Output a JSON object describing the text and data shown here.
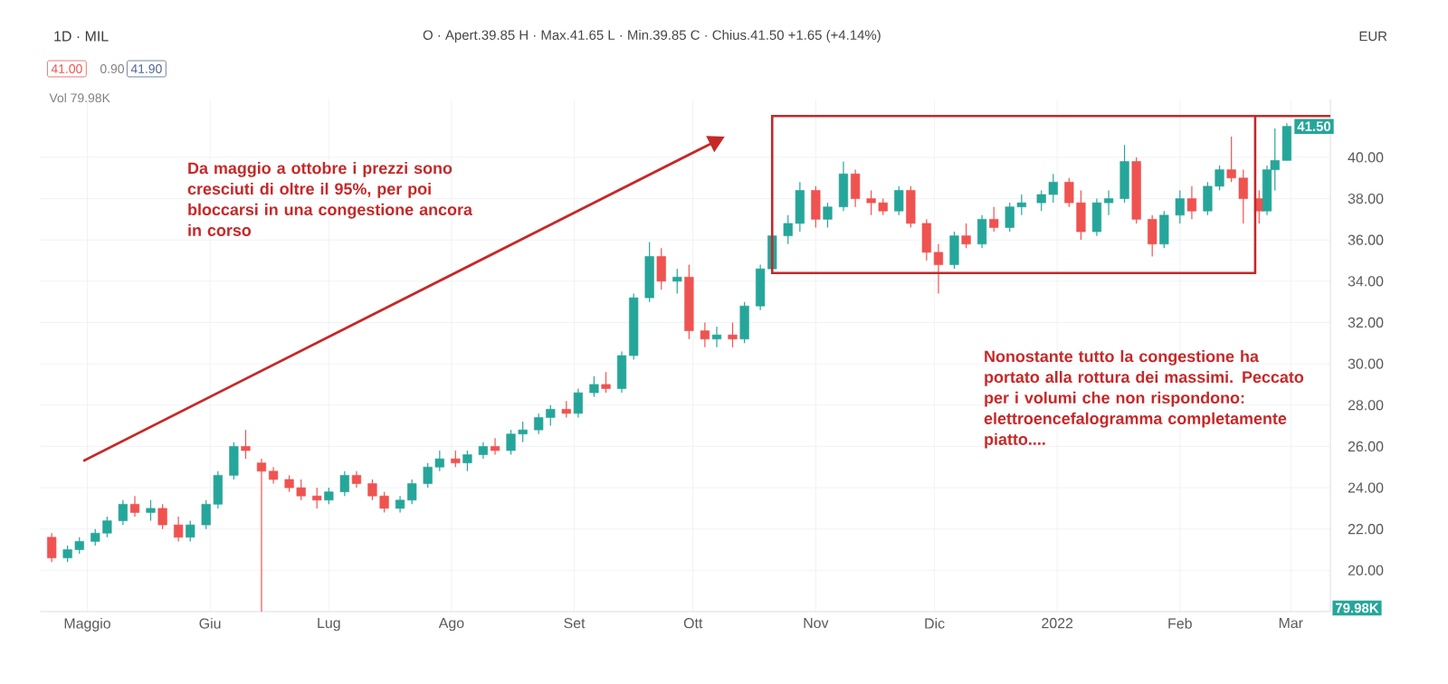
{
  "chart_data": {
    "type": "candlestick",
    "title": "1D · MIL",
    "subtitle": "O · Apert.39.85 H · Max.41.65 L · Min.39.85 C · Chius.41.50 +1.65 (+4.14%)",
    "ylabel": "EUR",
    "annotations": [
      "Da maggio a ottobre i prezzi sono cresciuti di oltre il 95%, per poi bloccarsi in una congestione ancora in corso",
      "Nonostante tutto la congestione ha portato alla rottura dei massimi. Peccato per i volumi che non rispondono: elettroencefalogramma completamente piatto....",
      "41.00",
      "0.90",
      "41.90",
      "Vol 79.98K",
      "79.98K",
      {
        "text": "41.50",
        "x": "2022-02-28",
        "y": 41.5
      }
    ],
    "x": [
      "2021-04-22",
      "2021-04-26",
      "2021-04-29",
      "2021-05-03",
      "2021-05-06",
      "2021-05-10",
      "2021-05-13",
      "2021-05-17",
      "2021-05-20",
      "2021-05-24",
      "2021-05-27",
      "2021-05-31",
      "2021-06-03",
      "2021-06-07",
      "2021-06-10",
      "2021-06-14",
      "2021-06-17",
      "2021-06-21",
      "2021-06-24",
      "2021-06-28",
      "2021-07-01",
      "2021-07-05",
      "2021-07-08",
      "2021-07-12",
      "2021-07-15",
      "2021-07-19",
      "2021-07-22",
      "2021-07-26",
      "2021-07-29",
      "2021-08-02",
      "2021-08-05",
      "2021-08-09",
      "2021-08-12",
      "2021-08-16",
      "2021-08-19",
      "2021-08-23",
      "2021-08-26",
      "2021-08-30",
      "2021-09-02",
      "2021-09-06",
      "2021-09-09",
      "2021-09-13",
      "2021-09-16",
      "2021-09-20",
      "2021-09-23",
      "2021-09-27",
      "2021-09-30",
      "2021-10-04",
      "2021-10-07",
      "2021-10-11",
      "2021-10-14",
      "2021-10-18",
      "2021-10-21",
      "2021-10-25",
      "2021-10-28",
      "2021-11-01",
      "2021-11-04",
      "2021-11-08",
      "2021-11-11",
      "2021-11-15",
      "2021-11-18",
      "2021-11-22",
      "2021-11-25",
      "2021-11-29",
      "2021-12-02",
      "2021-12-06",
      "2021-12-09",
      "2021-12-13",
      "2021-12-16",
      "2021-12-20",
      "2021-12-23",
      "2021-12-28",
      "2021-12-31",
      "2022-01-04",
      "2022-01-07",
      "2022-01-11",
      "2022-01-14",
      "2022-01-18",
      "2022-01-21",
      "2022-01-25",
      "2022-01-28",
      "2022-02-01",
      "2022-02-04",
      "2022-02-08",
      "2022-02-11",
      "2022-02-14",
      "2022-02-17",
      "2022-02-21",
      "2022-02-23",
      "2022-02-25",
      "2022-02-28"
    ],
    "ohlc": [
      [
        21.6,
        21.8,
        20.4,
        20.6
      ],
      [
        20.6,
        21.2,
        20.4,
        21.0
      ],
      [
        21.0,
        21.6,
        20.8,
        21.4
      ],
      [
        21.4,
        22.0,
        21.2,
        21.8
      ],
      [
        21.8,
        22.6,
        21.6,
        22.4
      ],
      [
        22.4,
        23.4,
        22.2,
        23.2
      ],
      [
        23.2,
        23.6,
        22.6,
        22.8
      ],
      [
        22.8,
        23.4,
        22.4,
        23.0
      ],
      [
        23.0,
        23.2,
        22.0,
        22.2
      ],
      [
        22.2,
        22.6,
        21.4,
        21.6
      ],
      [
        21.6,
        22.4,
        21.4,
        22.2
      ],
      [
        22.2,
        23.4,
        22.0,
        23.2
      ],
      [
        23.2,
        24.8,
        23.0,
        24.6
      ],
      [
        24.6,
        26.2,
        24.4,
        26.0
      ],
      [
        26.0,
        26.8,
        25.4,
        25.8
      ],
      [
        25.2,
        25.4,
        18.0,
        24.8
      ],
      [
        24.8,
        25.0,
        24.2,
        24.4
      ],
      [
        24.4,
        24.6,
        23.8,
        24.0
      ],
      [
        24.0,
        24.4,
        23.4,
        23.6
      ],
      [
        23.6,
        24.0,
        23.0,
        23.4
      ],
      [
        23.4,
        24.0,
        23.2,
        23.8
      ],
      [
        23.8,
        24.8,
        23.6,
        24.6
      ],
      [
        24.6,
        24.8,
        24.0,
        24.2
      ],
      [
        24.2,
        24.4,
        23.4,
        23.6
      ],
      [
        23.6,
        23.8,
        22.8,
        23.0
      ],
      [
        23.0,
        23.6,
        22.8,
        23.4
      ],
      [
        23.4,
        24.4,
        23.2,
        24.2
      ],
      [
        24.2,
        25.2,
        24.0,
        25.0
      ],
      [
        25.0,
        25.8,
        24.8,
        25.4
      ],
      [
        25.4,
        25.8,
        25.0,
        25.2
      ],
      [
        25.2,
        25.8,
        24.8,
        25.6
      ],
      [
        25.6,
        26.2,
        25.4,
        26.0
      ],
      [
        26.0,
        26.4,
        25.6,
        25.8
      ],
      [
        25.8,
        26.8,
        25.6,
        26.6
      ],
      [
        26.6,
        27.2,
        26.2,
        26.8
      ],
      [
        26.8,
        27.6,
        26.6,
        27.4
      ],
      [
        27.4,
        28.0,
        27.0,
        27.8
      ],
      [
        27.8,
        28.2,
        27.4,
        27.6
      ],
      [
        27.6,
        28.8,
        27.4,
        28.6
      ],
      [
        28.6,
        29.4,
        28.4,
        29.0
      ],
      [
        29.0,
        29.6,
        28.6,
        28.8
      ],
      [
        28.8,
        30.6,
        28.6,
        30.4
      ],
      [
        30.4,
        33.4,
        30.2,
        33.2
      ],
      [
        33.2,
        35.9,
        33.0,
        35.2
      ],
      [
        35.2,
        35.6,
        33.6,
        34.0
      ],
      [
        34.0,
        34.6,
        33.4,
        34.2
      ],
      [
        34.2,
        34.8,
        31.2,
        31.6
      ],
      [
        31.6,
        32.0,
        30.8,
        31.2
      ],
      [
        31.2,
        31.8,
        30.8,
        31.4
      ],
      [
        31.4,
        32.0,
        30.8,
        31.2
      ],
      [
        31.2,
        33.0,
        31.0,
        32.8
      ],
      [
        32.8,
        34.8,
        32.6,
        34.6
      ],
      [
        34.6,
        36.4,
        34.4,
        36.2
      ],
      [
        36.2,
        37.2,
        35.8,
        36.8
      ],
      [
        36.8,
        38.8,
        36.4,
        38.4
      ],
      [
        38.4,
        38.6,
        36.6,
        37.0
      ],
      [
        37.0,
        37.8,
        36.6,
        37.6
      ],
      [
        37.6,
        39.8,
        37.4,
        39.2
      ],
      [
        39.2,
        39.4,
        37.6,
        38.0
      ],
      [
        38.0,
        38.4,
        37.2,
        37.8
      ],
      [
        37.8,
        38.0,
        37.2,
        37.4
      ],
      [
        37.4,
        38.6,
        37.2,
        38.4
      ],
      [
        38.4,
        38.6,
        36.6,
        36.8
      ],
      [
        36.8,
        37.0,
        35.0,
        35.4
      ],
      [
        35.4,
        35.8,
        33.4,
        34.8
      ],
      [
        34.8,
        36.4,
        34.6,
        36.2
      ],
      [
        36.2,
        36.8,
        35.6,
        35.8
      ],
      [
        35.8,
        37.2,
        35.6,
        37.0
      ],
      [
        37.0,
        37.6,
        36.4,
        36.6
      ],
      [
        36.6,
        37.8,
        36.4,
        37.6
      ],
      [
        37.6,
        38.2,
        37.2,
        37.8
      ],
      [
        37.8,
        38.4,
        37.4,
        38.2
      ],
      [
        38.2,
        39.2,
        37.8,
        38.8
      ],
      [
        38.8,
        39.0,
        37.6,
        37.8
      ],
      [
        37.8,
        38.4,
        36.0,
        36.4
      ],
      [
        36.4,
        38.0,
        36.2,
        37.8
      ],
      [
        37.8,
        38.4,
        37.2,
        38.0
      ],
      [
        38.0,
        40.6,
        37.8,
        39.8
      ],
      [
        39.8,
        40.0,
        36.8,
        37.0
      ],
      [
        37.0,
        37.2,
        35.2,
        35.8
      ],
      [
        35.8,
        37.4,
        35.6,
        37.2
      ],
      [
        37.2,
        38.4,
        36.8,
        38.0
      ],
      [
        38.0,
        38.6,
        37.0,
        37.4
      ],
      [
        37.4,
        38.8,
        37.2,
        38.6
      ],
      [
        38.6,
        39.6,
        38.4,
        39.4
      ],
      [
        39.4,
        41.0,
        38.8,
        39.0
      ],
      [
        39.0,
        39.4,
        36.8,
        38.0
      ],
      [
        38.0,
        38.4,
        36.8,
        37.4
      ],
      [
        37.4,
        39.6,
        37.2,
        39.4
      ],
      [
        39.4,
        41.4,
        38.4,
        39.85
      ],
      [
        39.85,
        41.65,
        39.85,
        41.5
      ]
    ],
    "xlim": [
      "2021-04-19",
      "2022-03-11"
    ],
    "xticks": [
      {
        "value": "2021-05-01",
        "label": "Maggio"
      },
      {
        "value": "2021-06-01",
        "label": "Giu"
      },
      {
        "value": "2021-07-01",
        "label": "Lug"
      },
      {
        "value": "2021-08-01",
        "label": "Ago"
      },
      {
        "value": "2021-09-01",
        "label": "Set"
      },
      {
        "value": "2021-10-01",
        "label": "Ott"
      },
      {
        "value": "2021-11-01",
        "label": "Nov"
      },
      {
        "value": "2021-12-01",
        "label": "Dic"
      },
      {
        "value": "2022-01-01",
        "label": "2022"
      },
      {
        "value": "2022-02-01",
        "label": "Feb"
      },
      {
        "value": "2022-03-01",
        "label": "Mar"
      }
    ],
    "ylim": [
      18.0,
      42.8
    ],
    "yticks": [
      {
        "value": 20,
        "label": "20.00"
      },
      {
        "value": 22,
        "label": "22.00"
      },
      {
        "value": 24,
        "label": "24.00"
      },
      {
        "value": 26,
        "label": "26.00"
      },
      {
        "value": 28,
        "label": "28.00"
      },
      {
        "value": 30,
        "label": "30.00"
      },
      {
        "value": 32,
        "label": "32.00"
      },
      {
        "value": 34,
        "label": "34.00"
      },
      {
        "value": 36,
        "label": "36.00"
      },
      {
        "value": 38,
        "label": "38.00"
      },
      {
        "value": 40,
        "label": "40.00"
      }
    ],
    "grid": true
  }
}
